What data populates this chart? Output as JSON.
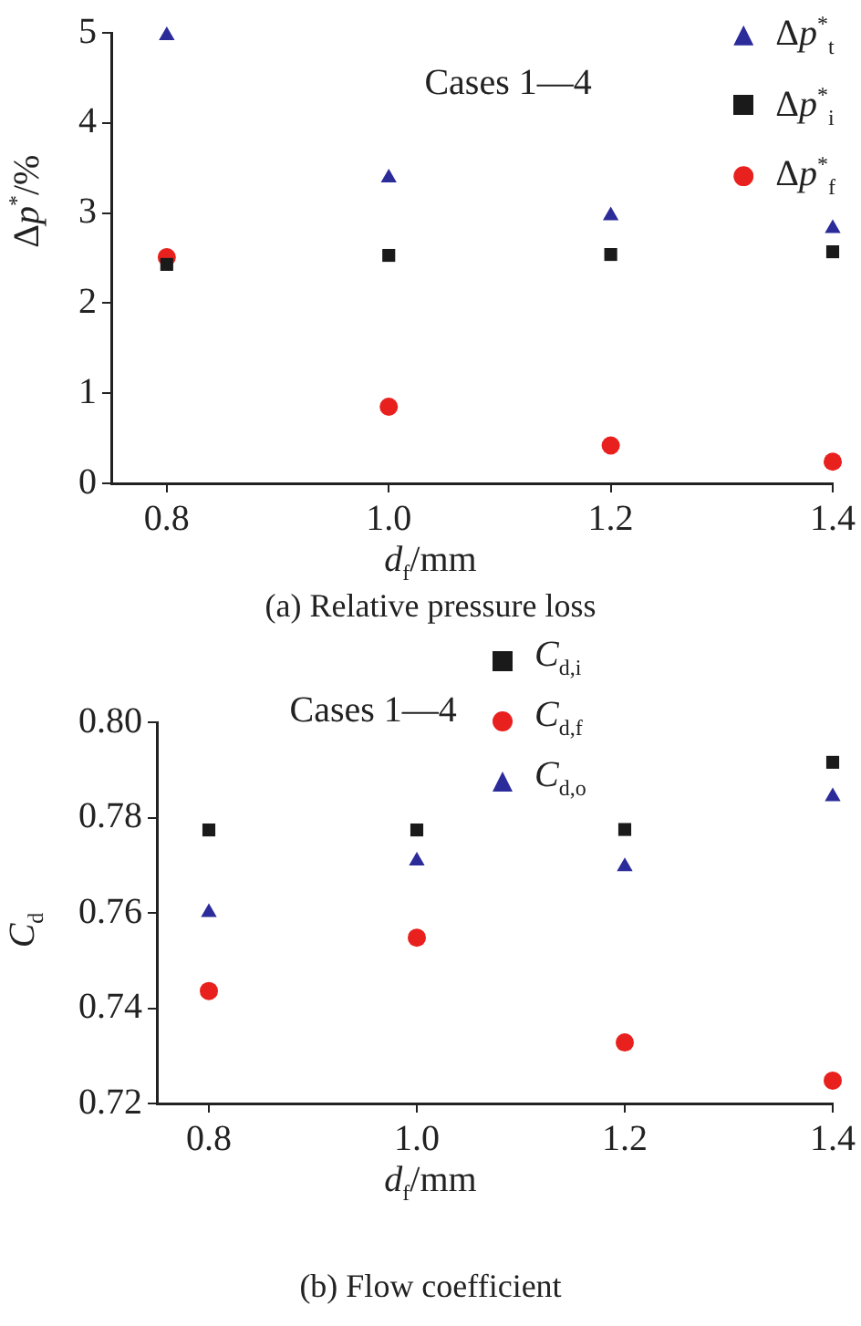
{
  "chart_data": [
    {
      "type": "scatter",
      "title": "(a) Relative pressure loss",
      "xlabel": "d$_{f}$/mm",
      "ylabel": "Δp$^{*}$/%",
      "annotations": [
        "Cases 1—4"
      ],
      "x": [
        0.8,
        1.0,
        1.2,
        1.4
      ],
      "xlim": [
        0.75,
        1.4
      ],
      "xticks": [
        {
          "value": 0.8,
          "label": "0.8"
        },
        {
          "value": 1.0,
          "label": "1.0"
        },
        {
          "value": 1.2,
          "label": "1.2"
        },
        {
          "value": 1.4,
          "label": "1.4"
        }
      ],
      "ylim": [
        0,
        5
      ],
      "yticks": [
        0,
        1,
        2,
        3,
        4,
        5
      ],
      "grid": false,
      "legend": "top right",
      "series": [
        {
          "name": "Δp$^{*}$$_{t}$",
          "color": "#2b2b9a",
          "marker": "triangle",
          "values": [
            4.97,
            3.39,
            2.97,
            2.83
          ]
        },
        {
          "name": "Δp$^{*}$$_{i}$",
          "color": "#1a1a1a",
          "marker": "square",
          "values": [
            2.43,
            2.53,
            2.54,
            2.57
          ]
        },
        {
          "name": "Δp$^{*}$$_{f}$",
          "color": "#e8201e",
          "marker": "circle",
          "values": [
            2.51,
            0.85,
            0.42,
            0.24
          ]
        }
      ]
    },
    {
      "type": "scatter",
      "title": "(b) Flow coefficient",
      "xlabel": "d$_{f}$/mm",
      "ylabel": "C$_{d}$",
      "annotations": [
        "Cases 1—4"
      ],
      "x": [
        0.8,
        1.0,
        1.2,
        1.4
      ],
      "xlim": [
        0.75,
        1.4
      ],
      "xticks": [
        {
          "value": 0.8,
          "label": "0.8"
        },
        {
          "value": 1.0,
          "label": "1.0"
        },
        {
          "value": 1.2,
          "label": "1.2"
        },
        {
          "value": 1.4,
          "label": "1.4"
        }
      ],
      "ylim": [
        0.72,
        0.8
      ],
      "yticks": [
        {
          "value": 0.72,
          "label": "0.72"
        },
        {
          "value": 0.74,
          "label": "0.74"
        },
        {
          "value": 0.76,
          "label": "0.76"
        },
        {
          "value": 0.78,
          "label": "0.78"
        },
        {
          "value": 0.8,
          "label": "0.80"
        }
      ],
      "grid": false,
      "legend": "top",
      "series": [
        {
          "name": "C$_{d,i}$",
          "color": "#1a1a1a",
          "marker": "square",
          "values": [
            0.7774,
            0.7774,
            0.7775,
            0.7916
          ]
        },
        {
          "name": "C$_{d,f}$",
          "color": "#e8201e",
          "marker": "circle",
          "values": [
            0.7436,
            0.7548,
            0.7328,
            0.7248
          ]
        },
        {
          "name": "C$_{d,o}$",
          "color": "#2b2b9a",
          "marker": "triangle",
          "values": [
            0.7601,
            0.7709,
            0.7697,
            0.7844
          ]
        }
      ]
    }
  ]
}
